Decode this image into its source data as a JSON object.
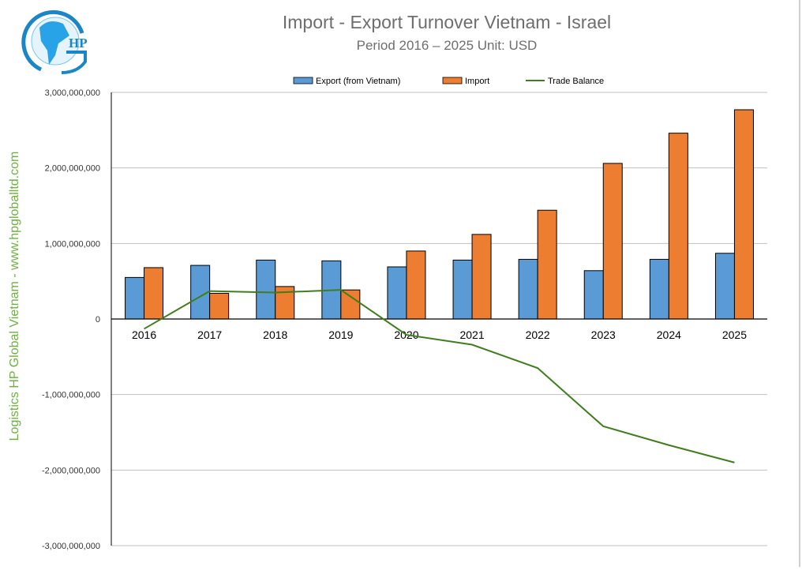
{
  "header": {
    "title": "Import - Export Turnover Vietnam - Israel",
    "subtitle": "Period 2016 – 2025  Unit: USD",
    "side_text": "Logistics HP Global Vietnam - www.hpgloballtd.com",
    "logo_text": "HP"
  },
  "chart_data": {
    "type": "bar",
    "categories": [
      "2016",
      "2017",
      "2018",
      "2019",
      "2020",
      "2021",
      "2022",
      "2023",
      "2024",
      "2025"
    ],
    "series": [
      {
        "name": "Export (from Vietnam)",
        "type": "bar",
        "color": "#5b9bd5",
        "values": [
          550000000,
          710000000,
          780000000,
          770000000,
          690000000,
          780000000,
          790000000,
          640000000,
          790000000,
          870000000
        ]
      },
      {
        "name": "Import",
        "type": "bar",
        "color": "#ed7d31",
        "values": [
          680000000,
          340000000,
          430000000,
          385000000,
          900000000,
          1120000000,
          1440000000,
          2060000000,
          2460000000,
          2770000000
        ]
      },
      {
        "name": "Trade Balance",
        "type": "line",
        "color": "#3f7d1e",
        "values": [
          -130000000,
          370000000,
          350000000,
          385000000,
          -210000000,
          -340000000,
          -650000000,
          -1420000000,
          -1670000000,
          -1900000000
        ]
      }
    ],
    "ylim": [
      -3000000000,
      3000000000
    ],
    "yticks": [
      "3,000,000,000",
      "2,000,000,000",
      "1,000,000,000",
      "0",
      "-1,000,000,000",
      "-2,000,000,000",
      "-3,000,000,000"
    ],
    "ytick_values": [
      3000000000,
      2000000000,
      1000000000,
      0,
      -1000000000,
      -2000000000,
      -3000000000
    ],
    "grid": true,
    "legend": "top"
  }
}
